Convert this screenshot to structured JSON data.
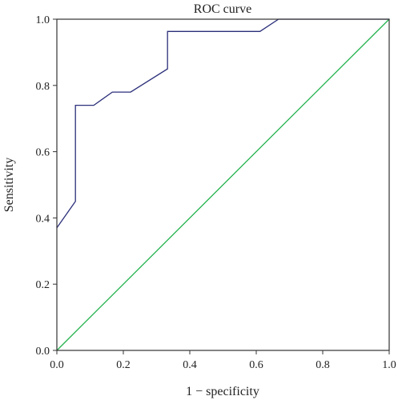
{
  "chart_data": {
    "type": "line",
    "title": "ROC curve",
    "xlabel": "1 − specificity",
    "ylabel": "Sensitivity",
    "xlim": [
      0.0,
      1.0
    ],
    "ylim": [
      0.0,
      1.0
    ],
    "x_ticks": [
      "0.0",
      "0.2",
      "0.4",
      "0.6",
      "0.8",
      "1.0"
    ],
    "y_ticks": [
      "0.0",
      "0.2",
      "0.4",
      "0.6",
      "0.8",
      "1.0"
    ],
    "grid": false,
    "legend": "none",
    "series": [
      {
        "color": "#2b2f7a",
        "x": [
          0.0,
          0.056,
          0.056,
          0.111,
          0.167,
          0.222,
          0.333,
          0.333,
          0.611,
          0.667,
          1.0
        ],
        "y": [
          0.37,
          0.45,
          0.74,
          0.74,
          0.78,
          0.78,
          0.85,
          0.963,
          0.963,
          1.0,
          1.0
        ]
      },
      {
        "color": "#22b24c",
        "x": [
          0.0,
          1.0
        ],
        "y": [
          0.0,
          1.0
        ]
      }
    ]
  }
}
